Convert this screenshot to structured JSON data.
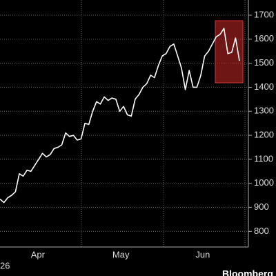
{
  "chart_data": {
    "type": "line",
    "values": [
      935,
      920,
      940,
      950,
      965,
      1040,
      1030,
      1055,
      1050,
      1075,
      1100,
      1125,
      1110,
      1120,
      1145,
      1150,
      1160,
      1210,
      1195,
      1200,
      1180,
      1185,
      1250,
      1245,
      1300,
      1340,
      1330,
      1360,
      1345,
      1355,
      1350,
      1300,
      1320,
      1285,
      1280,
      1350,
      1370,
      1400,
      1415,
      1450,
      1440,
      1490,
      1530,
      1540,
      1570,
      1580,
      1530,
      1480,
      1390,
      1470,
      1400,
      1400,
      1450,
      1530,
      1550,
      1580,
      1610,
      1620,
      1645,
      1540,
      1545,
      1605,
      1510
    ],
    "color": "#ffffff",
    "ylim": [
      735,
      1720
    ],
    "yticks": [
      800,
      900,
      1000,
      1100,
      1200,
      1300,
      1400,
      1500,
      1600,
      1700
    ],
    "xticks": [
      {
        "value": 9.8,
        "label": "Apr"
      },
      {
        "value": 31.3,
        "label": "May"
      },
      {
        "value": 52.5,
        "label": "Jun"
      }
    ],
    "grid": true,
    "footer_left": "26",
    "source": "Bloomberg"
  }
}
